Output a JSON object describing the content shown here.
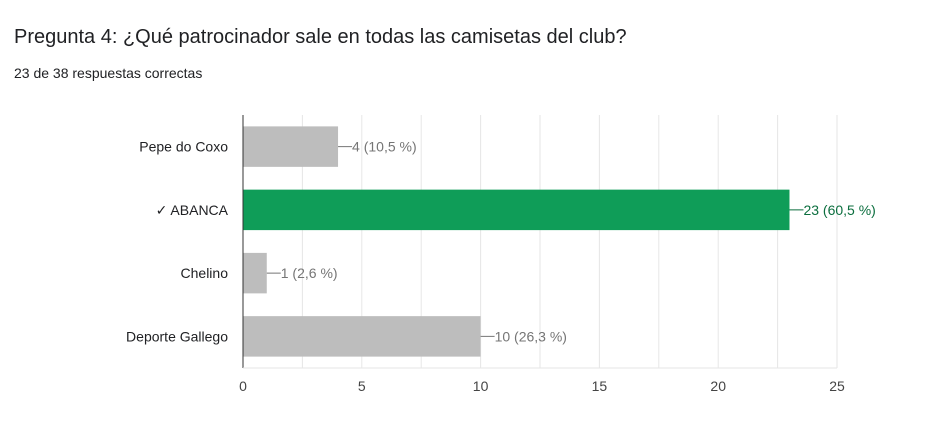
{
  "question": {
    "title": "Pregunta 4: ¿Qué patrocinador sale en todas las camisetas del club?",
    "summary": "23 de 38 respuestas correctas"
  },
  "colors": {
    "correct_bar": "#0f9d58",
    "incorrect_bar": "#bdbdbd",
    "correct_label": "#0b6e3e",
    "incorrect_label": "#757575",
    "axis": "#333333",
    "grid": "#e6e6e6"
  },
  "chart_data": {
    "type": "bar",
    "orientation": "horizontal",
    "categories": [
      "Pepe do Coxo",
      "✓ ABANCA",
      "Chelino",
      "Deporte Gallego"
    ],
    "values": [
      4,
      23,
      1,
      10
    ],
    "data_labels": [
      "4 (10,5 %)",
      "23 (60,5 %)",
      "1 (2,6 %)",
      "10 (26,3 %)"
    ],
    "correct": [
      false,
      true,
      false,
      false
    ],
    "xlim": [
      0,
      25
    ],
    "xticks": [
      0,
      5,
      10,
      15,
      20,
      25
    ],
    "grid": true,
    "title": "",
    "xlabel": "",
    "ylabel": ""
  }
}
